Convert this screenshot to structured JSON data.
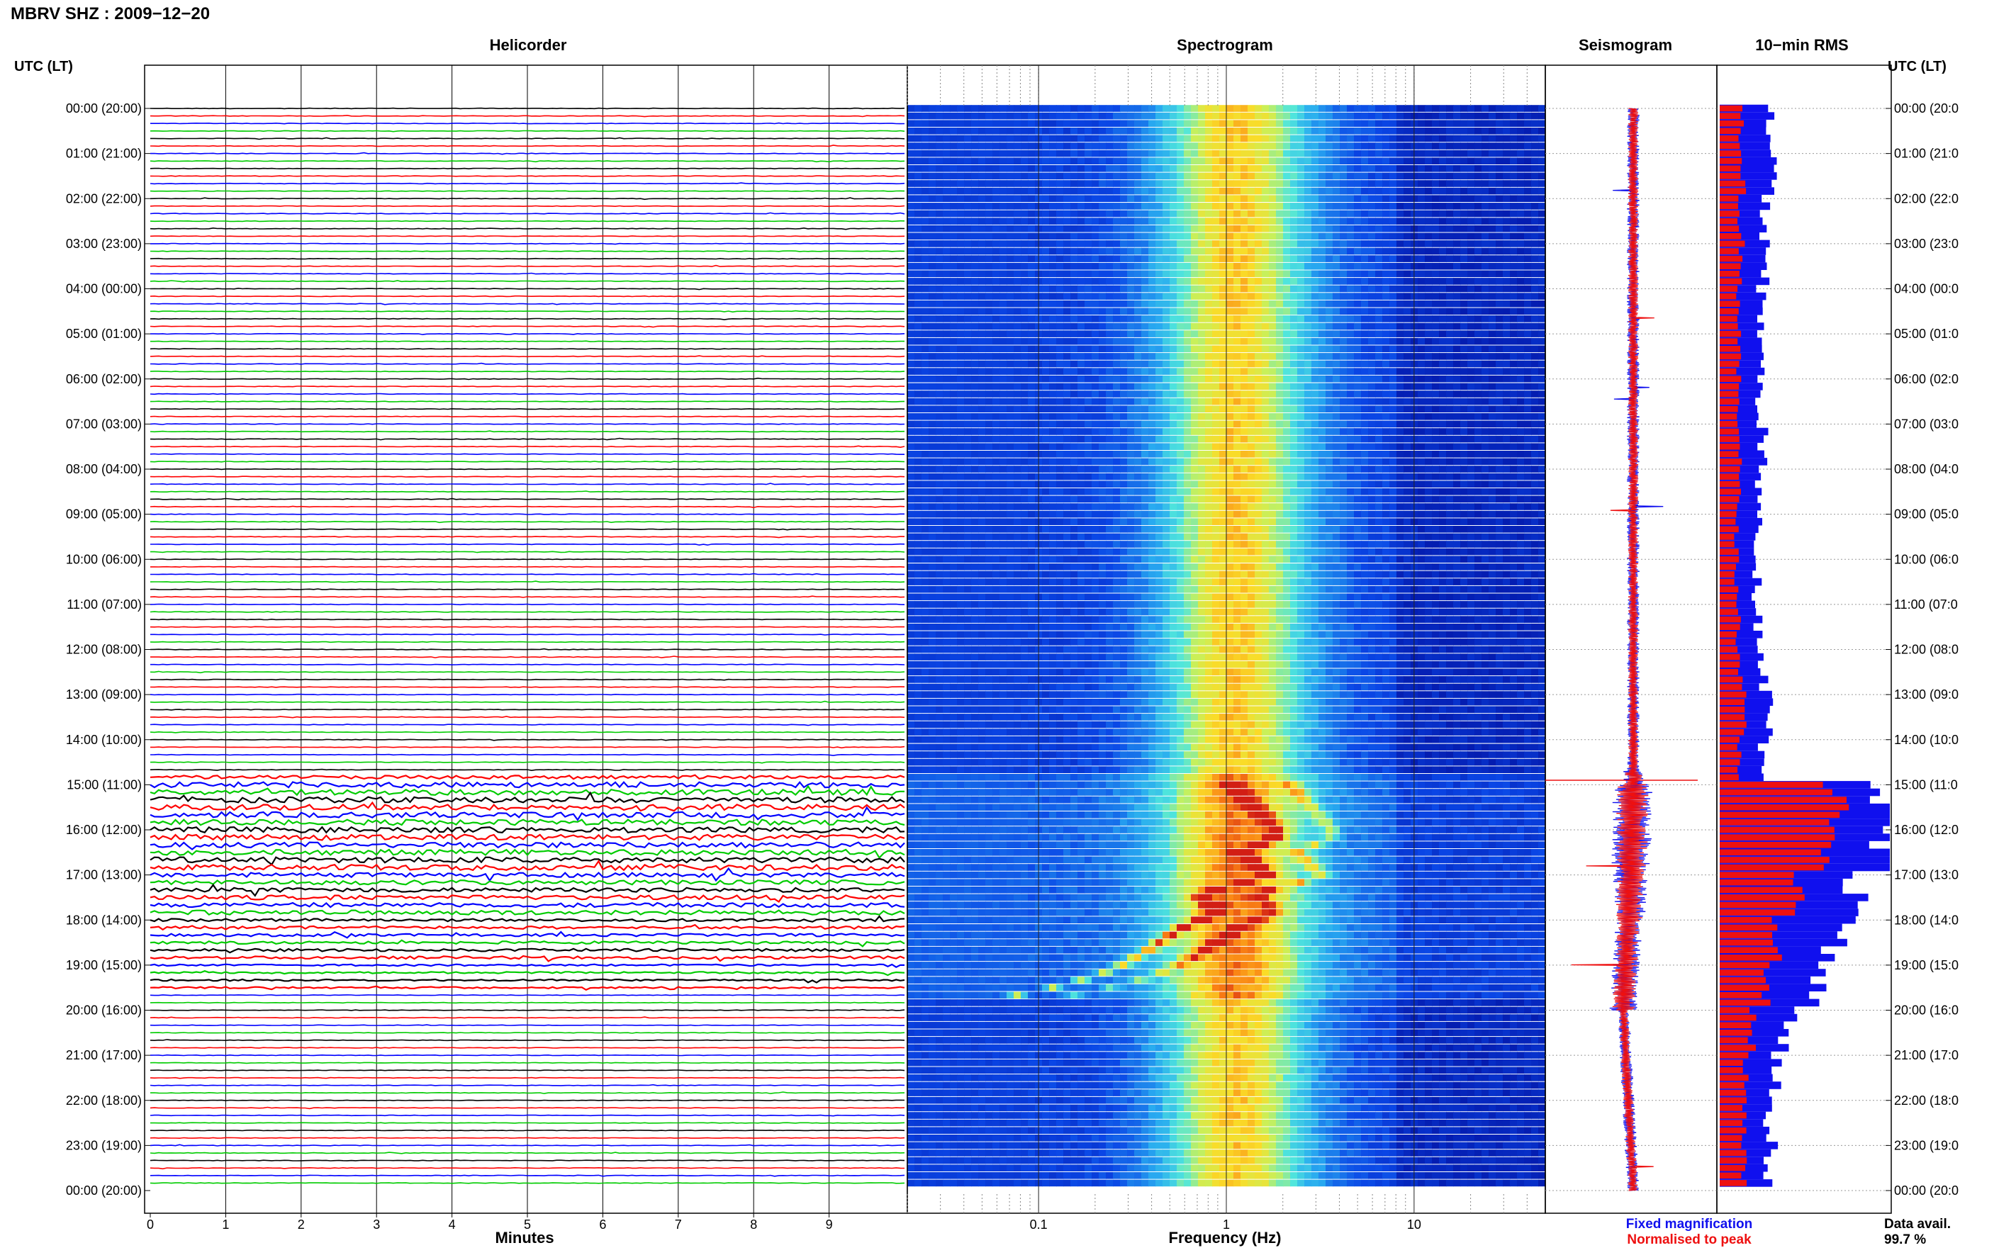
{
  "header": {
    "station_title": "MBRV SHZ : 2009−12−20",
    "left_axis_title": "UTC (LT)",
    "right_axis_title": "UTC (LT)"
  },
  "panels": {
    "helicorder": "Helicorder",
    "spectrogram": "Spectrogram",
    "seismogram": "Seismogram",
    "rms": "10−min RMS"
  },
  "legend": {
    "fixed": "Fixed magnification",
    "fixed_color": "#1010ee",
    "normalised": "Normalised to peak",
    "normalised_color": "#ee1010"
  },
  "data_avail": {
    "label": "Data avail.",
    "value": "99.7 %"
  },
  "chart_data": [
    {
      "type": "line",
      "title": "Helicorder",
      "xlabel": "Minutes",
      "ylabel": "UTC (LT)",
      "xlim": [
        0,
        10
      ],
      "x_ticks": [
        0,
        1,
        2,
        3,
        4,
        5,
        6,
        7,
        8,
        9
      ],
      "time_labels": [
        "00:00 (20:00)",
        "01:00 (21:00)",
        "02:00 (22:00)",
        "03:00 (23:00)",
        "04:00 (00:00)",
        "05:00 (01:00)",
        "06:00 (02:00)",
        "07:00 (03:00)",
        "08:00 (04:00)",
        "09:00 (05:00)",
        "10:00 (06:00)",
        "11:00 (07:00)",
        "12:00 (08:00)",
        "13:00 (09:00)",
        "14:00 (10:00)",
        "15:00 (11:00)",
        "16:00 (12:00)",
        "17:00 (13:00)",
        "18:00 (14:00)",
        "19:00 (15:00)",
        "20:00 (16:00)",
        "21:00 (17:00)",
        "22:00 (18:00)",
        "23:00 (19:00)",
        "00:00 (20:00)"
      ],
      "right_time_labels": [
        "00:00 (20:0",
        "01:00 (21:0",
        "02:00 (22:0",
        "03:00 (23:0",
        "04:00 (00:0",
        "05:00 (01:0",
        "06:00 (02:0",
        "07:00 (03:0",
        "08:00 (04:0",
        "09:00 (05:0",
        "10:00 (06:0",
        "11:00 (07:0",
        "12:00 (08:0",
        "13:00 (09:0",
        "14:00 (10:0",
        "15:00 (11:0",
        "16:00 (12:0",
        "17:00 (13:0",
        "18:00 (14:0",
        "19:00 (15:0",
        "20:00 (16:0",
        "21:00 (17:0",
        "22:00 (18:0",
        "23:00 (19:0",
        "00:00 (20:0"
      ],
      "trace_colors": [
        "#000000",
        "#ff0000",
        "#0000ff",
        "#00cc00"
      ],
      "trace_minutes": 10,
      "traces": 144
    },
    {
      "type": "heatmap",
      "title": "Spectrogram",
      "xlabel": "Frequency (Hz)",
      "x_scale": "log",
      "xlim": [
        0.02,
        50
      ],
      "x_tick_labels": [
        {
          "value": 0.1,
          "label": "0.1"
        },
        {
          "value": 1,
          "label": "1"
        },
        {
          "value": 10,
          "label": "10"
        }
      ],
      "peak_frequency_hz": 1.0,
      "tremor_window_utc": [
        "14:45",
        "19:45"
      ]
    },
    {
      "type": "line",
      "title": "Seismogram",
      "series": [
        {
          "name": "Fixed magnification",
          "color": "#1010ee"
        },
        {
          "name": "Normalised to peak",
          "color": "#ee1010"
        }
      ]
    },
    {
      "type": "bar",
      "title": "10−min RMS",
      "orientation": "horizontal",
      "bins": 144,
      "series": [
        {
          "name": "Fixed magnification",
          "color": "#1010ee",
          "hourly_rms": [
            0.28,
            0.3,
            0.26,
            0.28,
            0.24,
            0.24,
            0.24,
            0.25,
            0.23,
            0.22,
            0.22,
            0.23,
            0.26,
            0.3,
            0.26,
            1.0,
            1.0,
            0.85,
            0.7,
            0.55,
            0.4,
            0.32,
            0.3,
            0.3
          ]
        },
        {
          "name": "Normalised to peak",
          "color": "#ee1010",
          "hourly_rms": [
            0.13,
            0.14,
            0.12,
            0.13,
            0.11,
            0.11,
            0.11,
            0.12,
            0.11,
            0.1,
            0.1,
            0.11,
            0.12,
            0.14,
            0.12,
            0.68,
            0.6,
            0.45,
            0.33,
            0.27,
            0.19,
            0.15,
            0.14,
            0.14
          ]
        }
      ]
    }
  ]
}
